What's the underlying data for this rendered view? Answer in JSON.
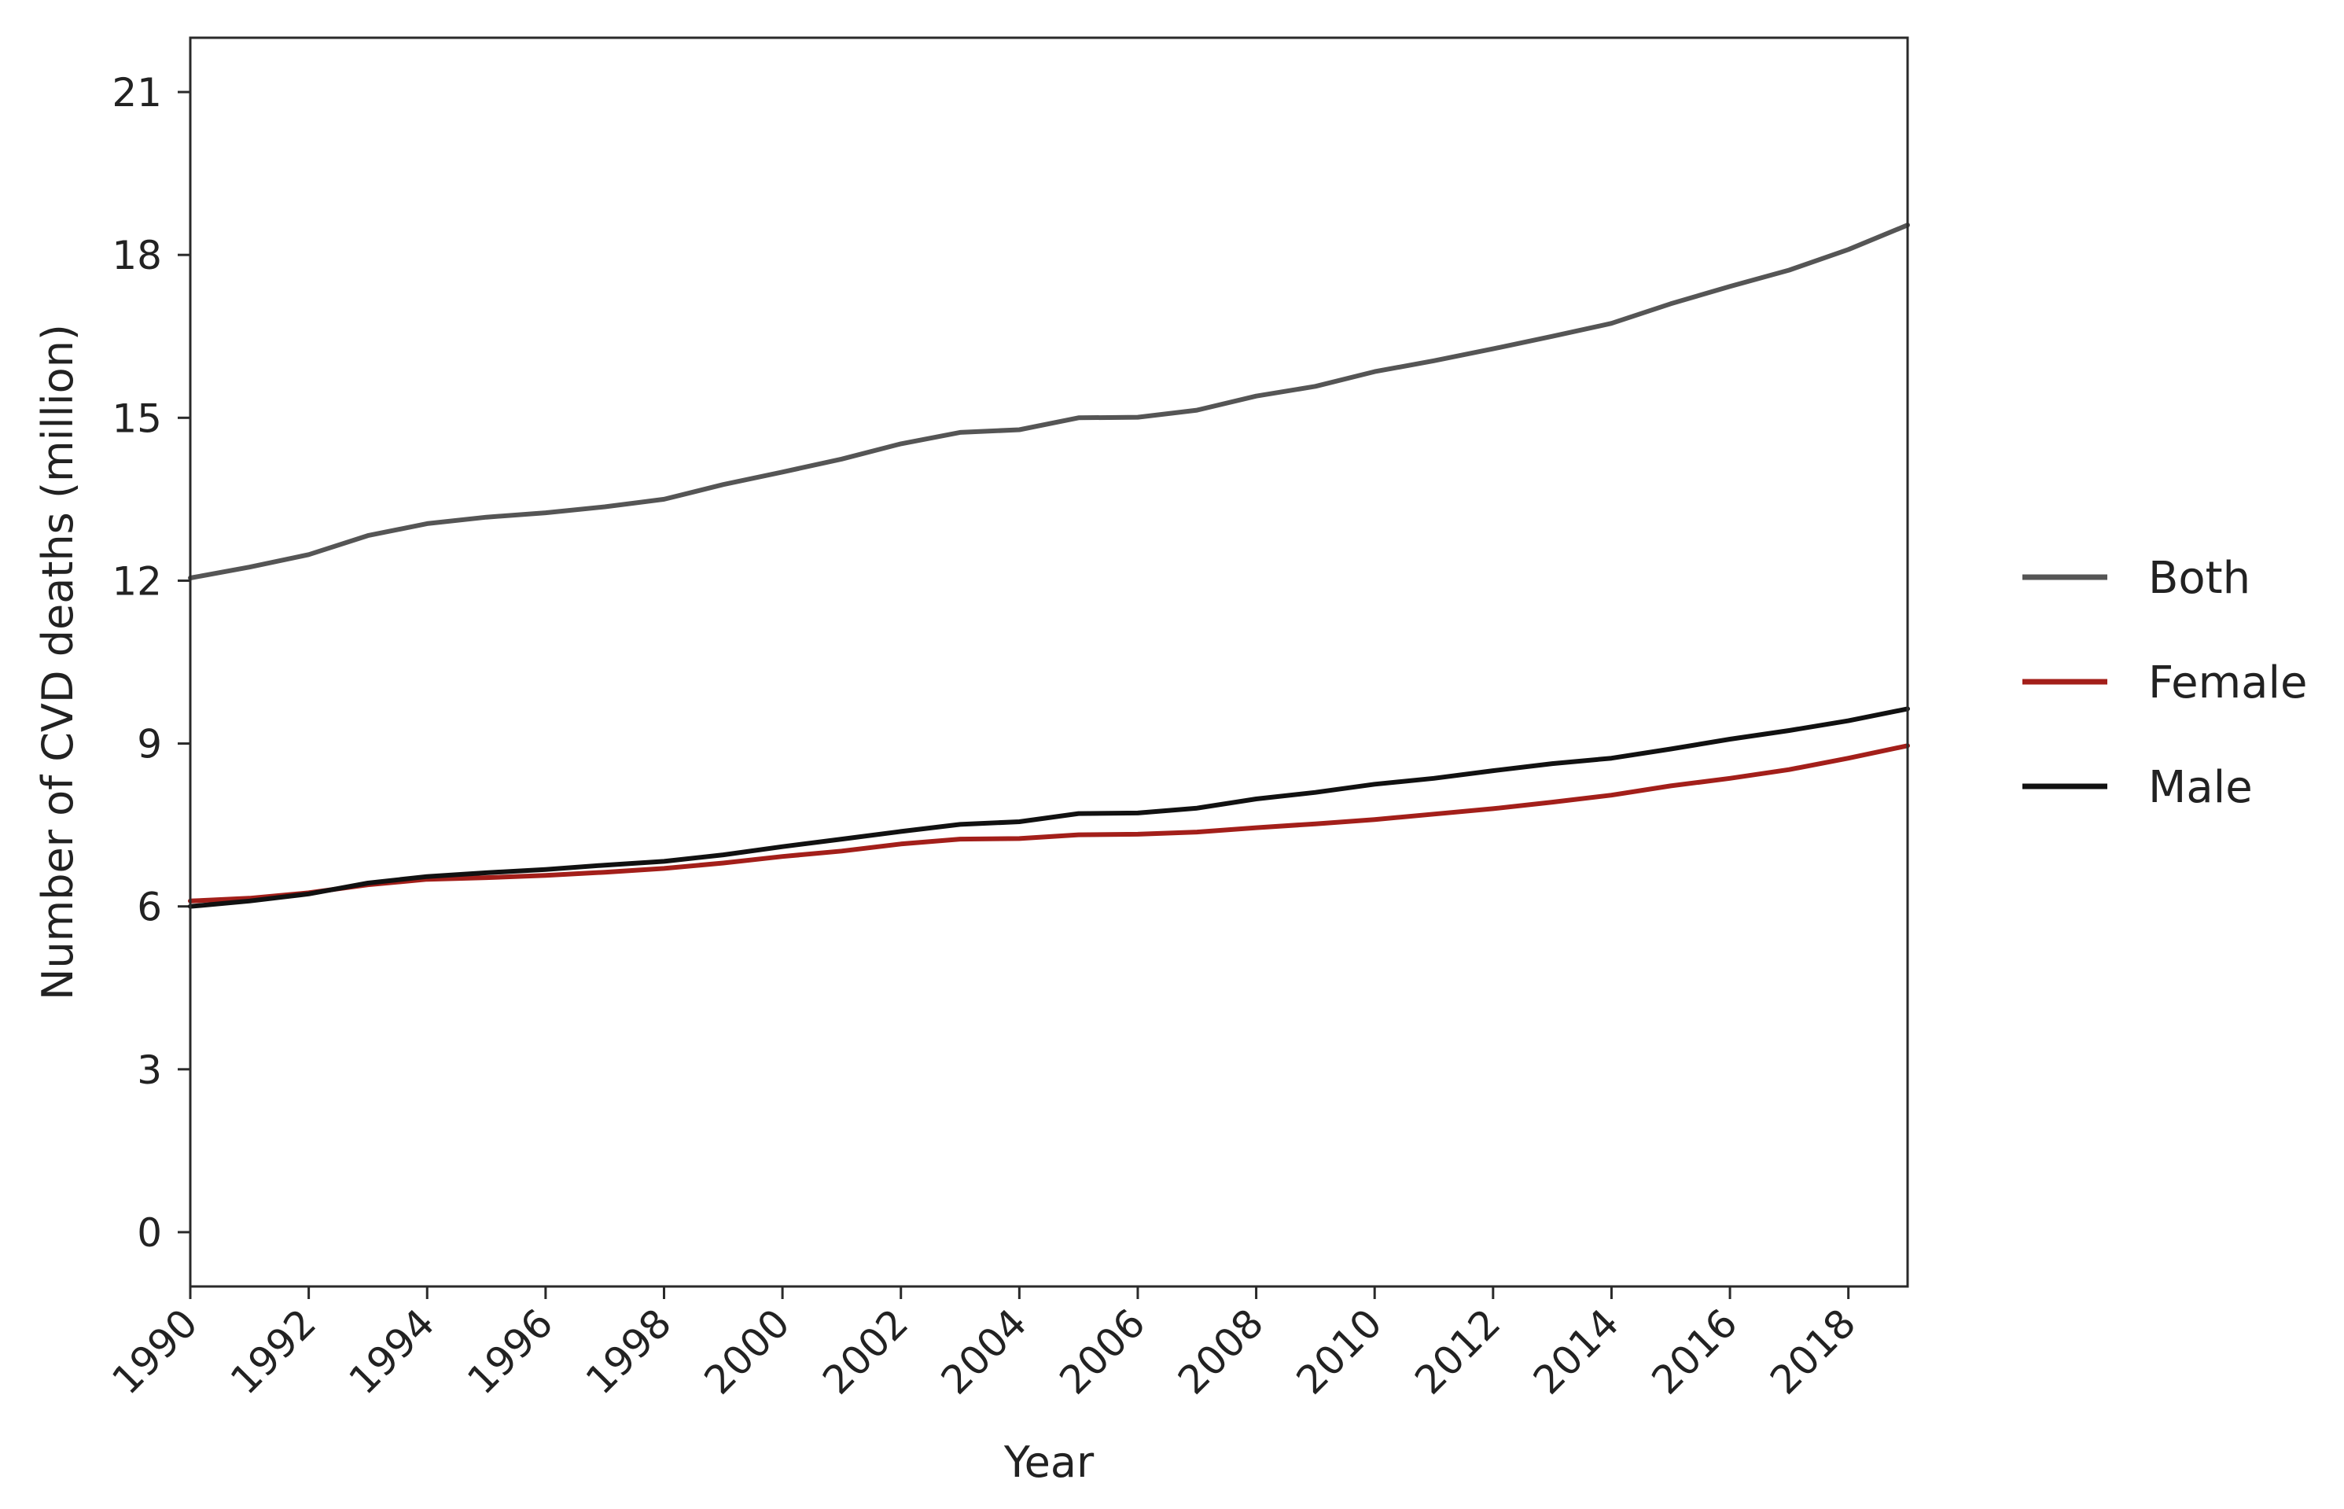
{
  "chart_data": {
    "type": "line",
    "title": "",
    "xlabel": "Year",
    "ylabel": "Number of CVD deaths (million)",
    "xlim": [
      1990,
      2019
    ],
    "ylim": [
      -1,
      22
    ],
    "xticks": [
      1990,
      1992,
      1994,
      1996,
      1998,
      2000,
      2002,
      2004,
      2006,
      2008,
      2010,
      2012,
      2014,
      2016,
      2018
    ],
    "yticks": [
      0,
      3,
      6,
      9,
      12,
      15,
      18,
      21
    ],
    "grid": false,
    "legend_position": "right",
    "x": [
      1990,
      1991,
      1992,
      1993,
      1994,
      1995,
      1996,
      1997,
      1998,
      1999,
      2000,
      2001,
      2002,
      2003,
      2004,
      2005,
      2006,
      2007,
      2008,
      2009,
      2010,
      2011,
      2012,
      2013,
      2014,
      2015,
      2016,
      2017,
      2018,
      2019
    ],
    "series": [
      {
        "name": "Both",
        "color": "#555555",
        "values": [
          12.05,
          12.25,
          12.48,
          12.83,
          13.05,
          13.17,
          13.25,
          13.36,
          13.5,
          13.77,
          14.0,
          14.24,
          14.52,
          14.73,
          14.78,
          15.0,
          15.01,
          15.14,
          15.4,
          15.58,
          15.85,
          16.05,
          16.27,
          16.5,
          16.74,
          17.1,
          17.42,
          17.72,
          18.1,
          18.55
        ]
      },
      {
        "name": "Female",
        "color": "#a31f1a",
        "values": [
          6.1,
          6.15,
          6.25,
          6.4,
          6.5,
          6.53,
          6.57,
          6.63,
          6.7,
          6.8,
          6.92,
          7.02,
          7.15,
          7.24,
          7.25,
          7.32,
          7.33,
          7.37,
          7.45,
          7.52,
          7.6,
          7.7,
          7.8,
          7.92,
          8.05,
          8.22,
          8.36,
          8.52,
          8.73,
          8.96
        ]
      },
      {
        "name": "Male",
        "color": "#111111",
        "values": [
          6.0,
          6.1,
          6.23,
          6.43,
          6.55,
          6.62,
          6.68,
          6.76,
          6.83,
          6.95,
          7.1,
          7.24,
          7.38,
          7.51,
          7.56,
          7.71,
          7.72,
          7.81,
          7.98,
          8.1,
          8.25,
          8.36,
          8.5,
          8.63,
          8.73,
          8.9,
          9.08,
          9.24,
          9.42,
          9.64
        ]
      }
    ]
  }
}
